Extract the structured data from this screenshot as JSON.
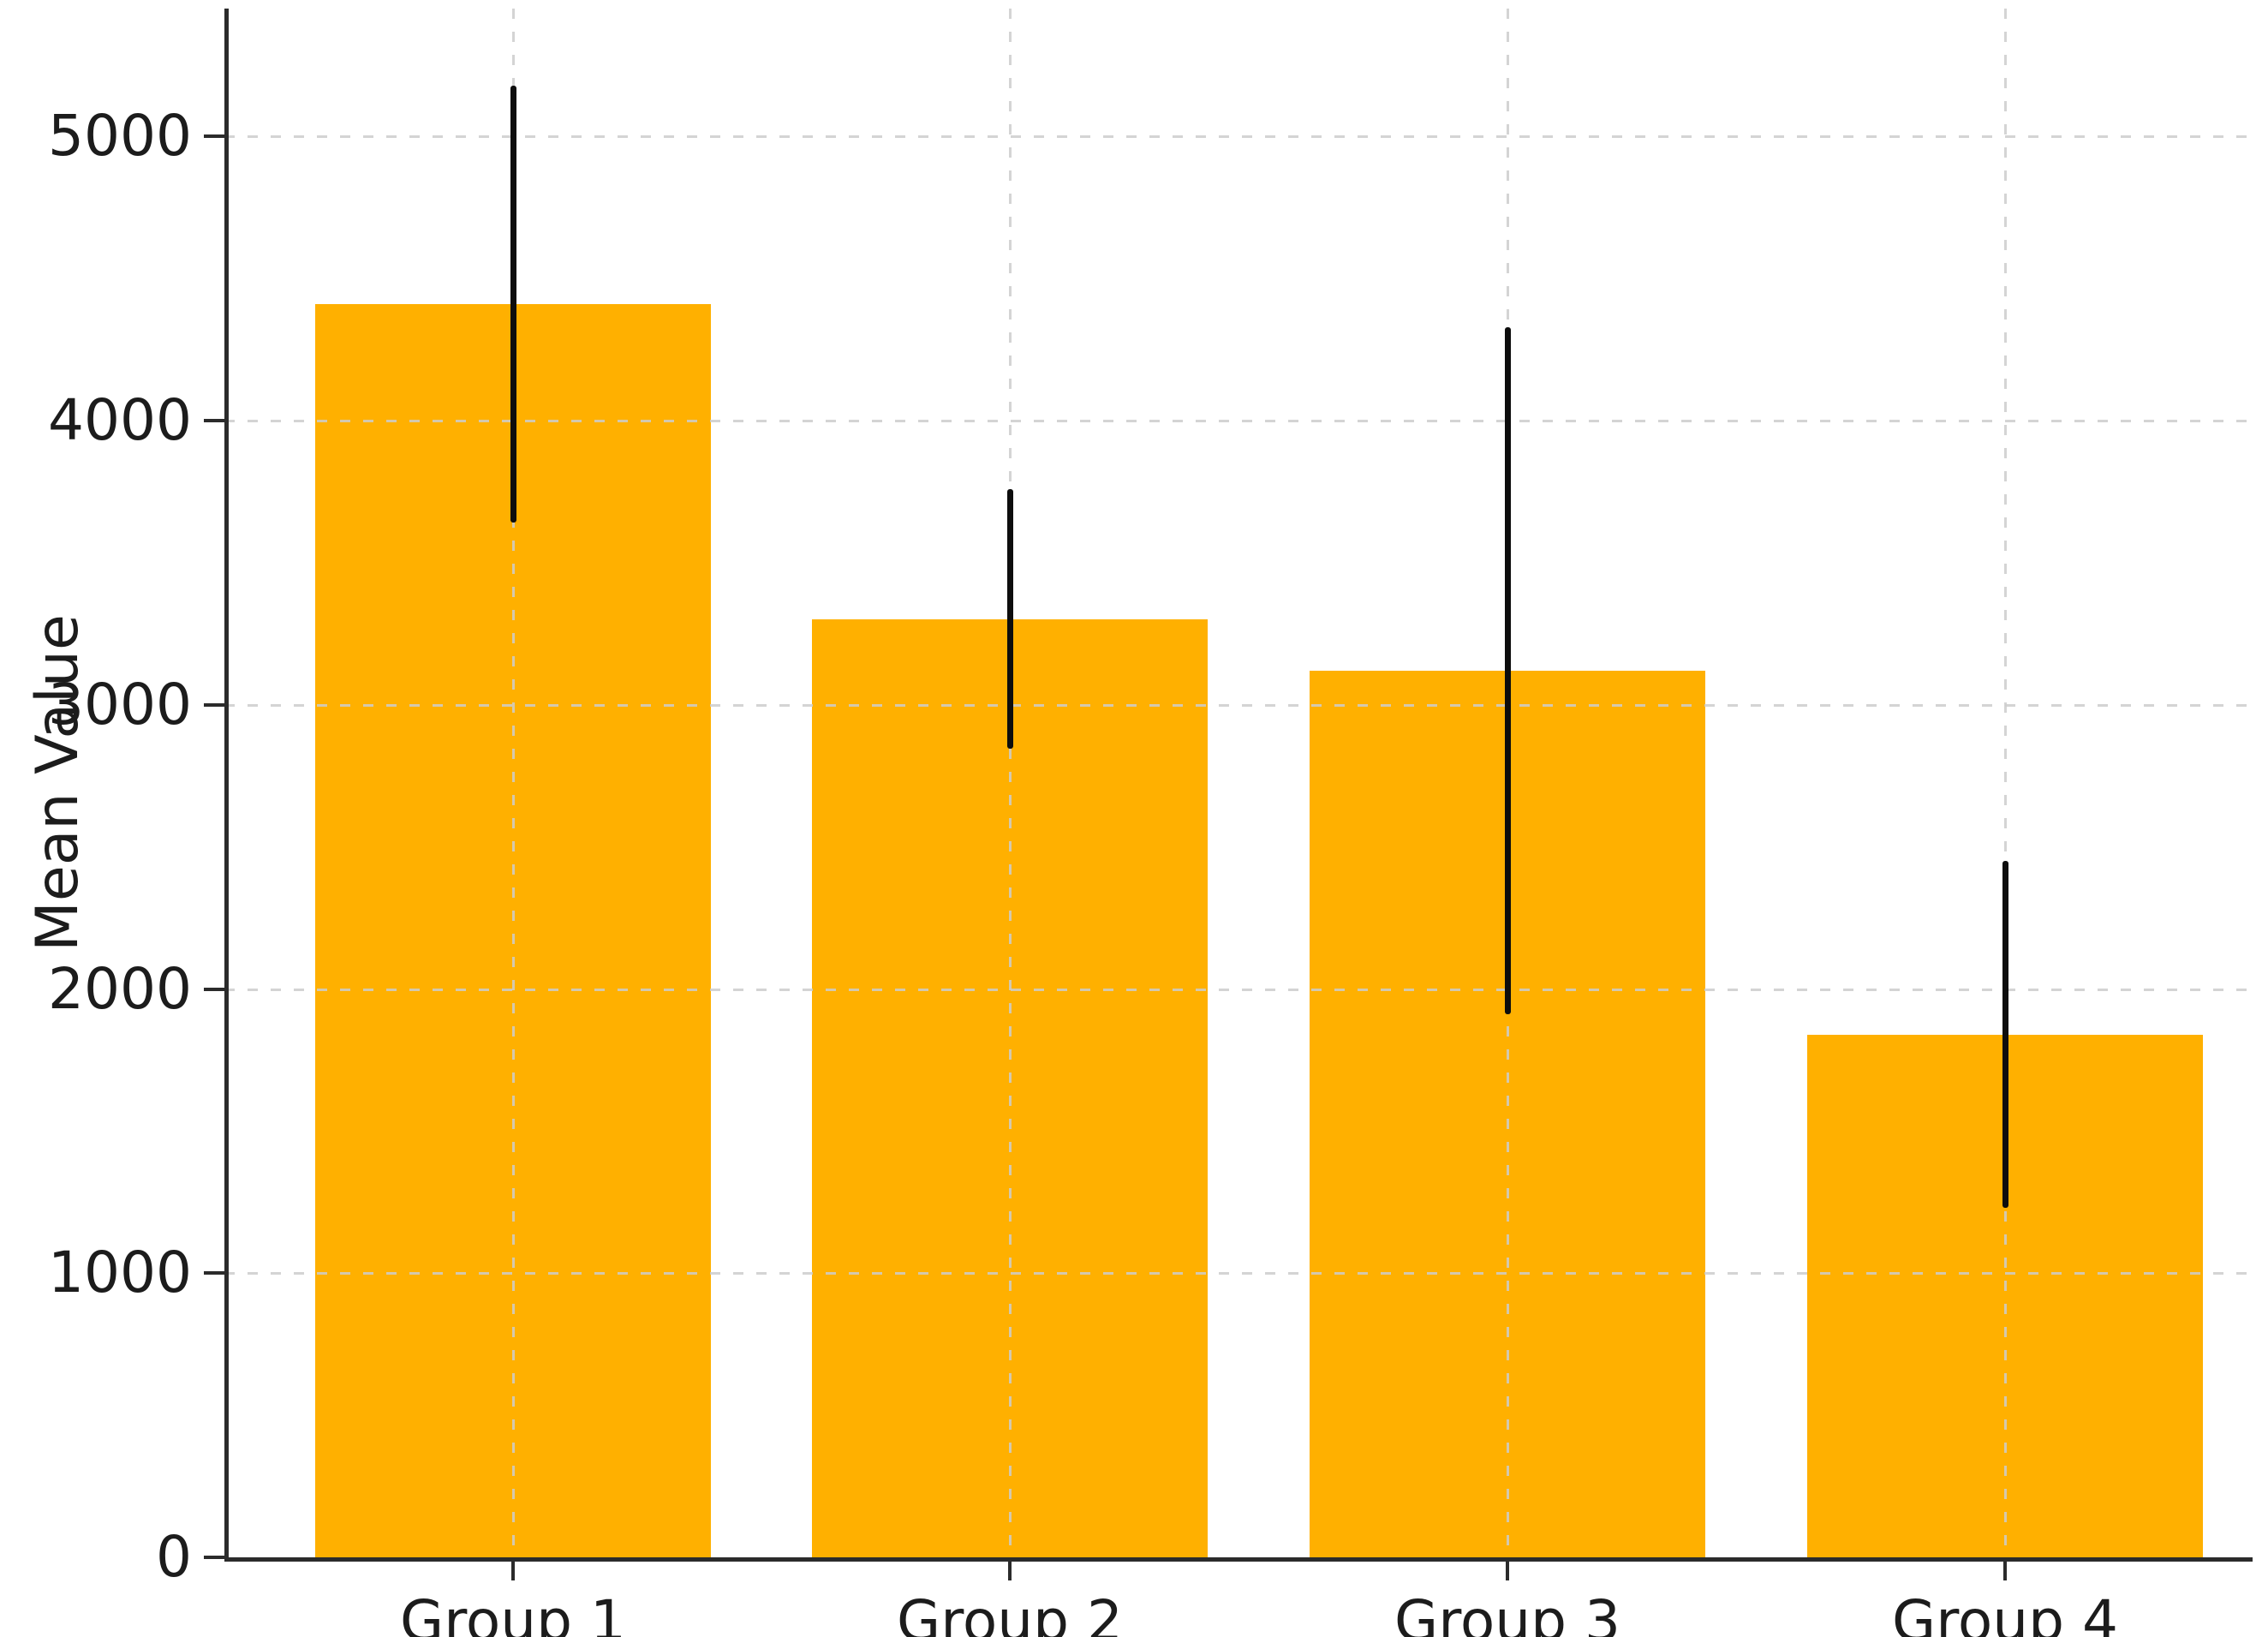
{
  "figure": {
    "background": "#ffffff",
    "y_axis_title": "Mean Value"
  },
  "chart_data": {
    "type": "bar",
    "title": "",
    "xlabel": "",
    "ylabel": "Mean Value",
    "categories": [
      "Group 1",
      "Group 2",
      "Group 3",
      "Group 4"
    ],
    "values": [
      4410,
      3300,
      3120,
      1840
    ],
    "error_bars": {
      "low": [
        3640,
        2845,
        1910,
        1230
      ],
      "high": [
        5180,
        3760,
        4330,
        2450
      ]
    },
    "yticks": [
      0,
      1000,
      2000,
      3000,
      4000,
      5000
    ],
    "ylim": [
      0,
      5450
    ],
    "grid": "dashed light-gray horizontal and vertical gridlines, drawn above bars",
    "legend": "none",
    "bar_color": "#FFB000",
    "error_bar_color": "#0d0d0d",
    "axis_color": "#2b2b2b"
  }
}
